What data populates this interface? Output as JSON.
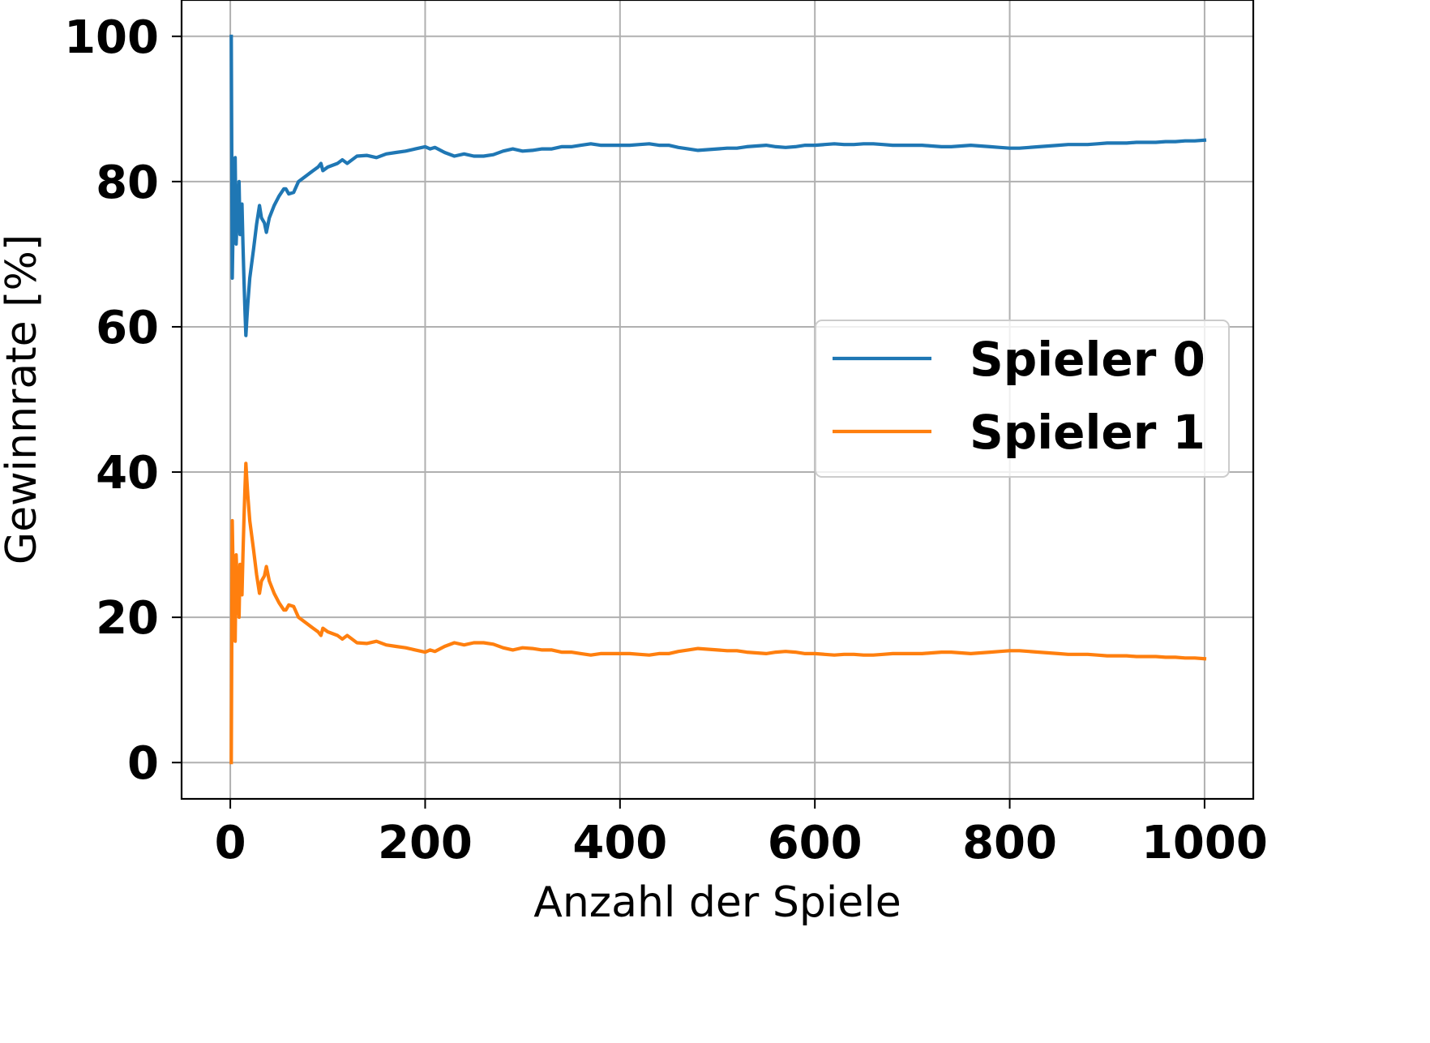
{
  "chart_data": {
    "type": "line",
    "title": "",
    "xlabel": "Anzahl der Spiele",
    "ylabel": "Gewinnrate [%]",
    "xlim": [
      -50,
      1050
    ],
    "ylim": [
      -5,
      105
    ],
    "xticks": [
      0,
      200,
      400,
      600,
      800,
      1000
    ],
    "yticks": [
      0,
      20,
      40,
      60,
      80,
      100
    ],
    "xtick_labels": [
      "0",
      "200",
      "400",
      "600",
      "800",
      "1000"
    ],
    "ytick_labels": [
      "0",
      "20",
      "40",
      "60",
      "80",
      "100"
    ],
    "grid": true,
    "legend_position": "center-right",
    "series": [
      {
        "name": "Spieler 0",
        "color": "#1f77b4",
        "x": [
          1,
          2,
          3,
          4,
          5,
          6,
          7,
          8,
          9,
          10,
          11,
          12,
          13,
          14,
          15,
          16,
          17,
          18,
          20,
          24,
          27,
          30,
          32,
          35,
          37,
          40,
          45,
          50,
          55,
          57,
          60,
          65,
          70,
          75,
          80,
          85,
          90,
          93,
          95,
          100,
          110,
          115,
          120,
          125,
          130,
          140,
          150,
          160,
          170,
          180,
          190,
          200,
          205,
          210,
          220,
          230,
          240,
          250,
          260,
          270,
          280,
          290,
          300,
          310,
          320,
          330,
          340,
          350,
          360,
          370,
          380,
          390,
          400,
          410,
          420,
          430,
          440,
          450,
          460,
          470,
          480,
          490,
          500,
          510,
          520,
          530,
          540,
          550,
          560,
          570,
          580,
          590,
          600,
          610,
          620,
          630,
          640,
          650,
          660,
          670,
          680,
          690,
          700,
          710,
          720,
          730,
          740,
          750,
          760,
          770,
          780,
          790,
          800,
          810,
          820,
          830,
          840,
          850,
          860,
          870,
          880,
          890,
          900,
          910,
          920,
          930,
          940,
          950,
          960,
          970,
          980,
          990,
          1000
        ],
        "y": [
          100,
          66.7,
          75,
          80,
          83.3,
          71.4,
          75,
          77.8,
          80,
          72.7,
          75,
          76.9,
          71.4,
          66.7,
          62.5,
          58.8,
          61.1,
          63.2,
          66.7,
          70.8,
          74.1,
          76.7,
          75.0,
          74.3,
          73.0,
          75.0,
          76.7,
          78.0,
          79.0,
          79.0,
          78.3,
          78.5,
          80.0,
          80.5,
          81.0,
          81.5,
          82.0,
          82.5,
          81.5,
          82.0,
          82.5,
          83.0,
          82.5,
          83.0,
          83.5,
          83.6,
          83.3,
          83.8,
          84.0,
          84.2,
          84.5,
          84.8,
          84.5,
          84.7,
          84.0,
          83.5,
          83.8,
          83.5,
          83.5,
          83.7,
          84.2,
          84.5,
          84.2,
          84.3,
          84.5,
          84.5,
          84.8,
          84.8,
          85.0,
          85.2,
          85.0,
          85.0,
          85.0,
          85.0,
          85.1,
          85.2,
          85.0,
          85.0,
          84.7,
          84.5,
          84.3,
          84.4,
          84.5,
          84.6,
          84.6,
          84.8,
          84.9,
          85.0,
          84.8,
          84.7,
          84.8,
          85.0,
          85.0,
          85.1,
          85.2,
          85.1,
          85.1,
          85.2,
          85.2,
          85.1,
          85.0,
          85.0,
          85.0,
          85.0,
          84.9,
          84.8,
          84.8,
          84.9,
          85.0,
          84.9,
          84.8,
          84.7,
          84.6,
          84.6,
          84.7,
          84.8,
          84.9,
          85.0,
          85.1,
          85.1,
          85.1,
          85.2,
          85.3,
          85.3,
          85.3,
          85.4,
          85.4,
          85.4,
          85.5,
          85.5,
          85.6,
          85.6,
          85.7
        ]
      },
      {
        "name": "Spieler 1",
        "color": "#ff7f0e",
        "x": [
          1,
          2,
          3,
          4,
          5,
          6,
          7,
          8,
          9,
          10,
          11,
          12,
          13,
          14,
          15,
          16,
          17,
          18,
          20,
          24,
          27,
          30,
          32,
          35,
          37,
          40,
          45,
          50,
          55,
          57,
          60,
          65,
          70,
          75,
          80,
          85,
          90,
          93,
          95,
          100,
          110,
          115,
          120,
          125,
          130,
          140,
          150,
          160,
          170,
          180,
          190,
          200,
          205,
          210,
          220,
          230,
          240,
          250,
          260,
          270,
          280,
          290,
          300,
          310,
          320,
          330,
          340,
          350,
          360,
          370,
          380,
          390,
          400,
          410,
          420,
          430,
          440,
          450,
          460,
          470,
          480,
          490,
          500,
          510,
          520,
          530,
          540,
          550,
          560,
          570,
          580,
          590,
          600,
          610,
          620,
          630,
          640,
          650,
          660,
          670,
          680,
          690,
          700,
          710,
          720,
          730,
          740,
          750,
          760,
          770,
          780,
          790,
          800,
          810,
          820,
          830,
          840,
          850,
          860,
          870,
          880,
          890,
          900,
          910,
          920,
          930,
          940,
          950,
          960,
          970,
          980,
          990,
          1000
        ],
        "y": [
          0,
          33.3,
          25,
          20,
          16.7,
          28.6,
          25,
          22.2,
          20,
          27.3,
          25,
          23.1,
          28.6,
          33.3,
          37.5,
          41.2,
          38.9,
          36.8,
          33.3,
          29.2,
          25.9,
          23.3,
          25.0,
          25.7,
          27.0,
          25.0,
          23.3,
          22.0,
          21.0,
          21.0,
          21.7,
          21.5,
          20.0,
          19.5,
          19.0,
          18.5,
          18.0,
          17.5,
          18.5,
          18.0,
          17.5,
          17.0,
          17.5,
          17.0,
          16.5,
          16.4,
          16.7,
          16.2,
          16.0,
          15.8,
          15.5,
          15.2,
          15.5,
          15.3,
          16.0,
          16.5,
          16.2,
          16.5,
          16.5,
          16.3,
          15.8,
          15.5,
          15.8,
          15.7,
          15.5,
          15.5,
          15.2,
          15.2,
          15.0,
          14.8,
          15.0,
          15.0,
          15.0,
          15.0,
          14.9,
          14.8,
          15.0,
          15.0,
          15.3,
          15.5,
          15.7,
          15.6,
          15.5,
          15.4,
          15.4,
          15.2,
          15.1,
          15.0,
          15.2,
          15.3,
          15.2,
          15.0,
          15.0,
          14.9,
          14.8,
          14.9,
          14.9,
          14.8,
          14.8,
          14.9,
          15.0,
          15.0,
          15.0,
          15.0,
          15.1,
          15.2,
          15.2,
          15.1,
          15.0,
          15.1,
          15.2,
          15.3,
          15.4,
          15.4,
          15.3,
          15.2,
          15.1,
          15.0,
          14.9,
          14.9,
          14.9,
          14.8,
          14.7,
          14.7,
          14.7,
          14.6,
          14.6,
          14.6,
          14.5,
          14.5,
          14.4,
          14.4,
          14.3
        ]
      }
    ]
  }
}
